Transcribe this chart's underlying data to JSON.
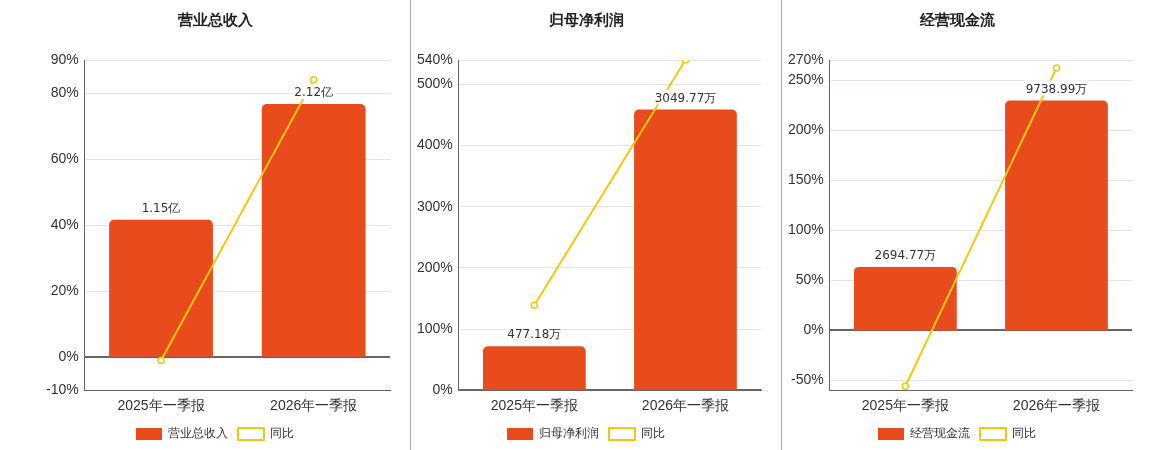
{
  "chart_data": [
    {
      "type": "bar",
      "title": "营业总收入",
      "categories": [
        "2025年一季报",
        "2026年一季报"
      ],
      "series": [
        {
          "name": "营业总收入",
          "color": "#e84c1c",
          "axis": "y2",
          "values": [
            1.15,
            2.12
          ],
          "value_labels": [
            "1.15亿",
            "2.12亿"
          ]
        },
        {
          "name": "同比",
          "type": "line",
          "color": "#f2c80f",
          "values": [
            -1,
            84
          ]
        }
      ],
      "ylim": [
        -10,
        90
      ],
      "yticks": [
        {
          "value": -10,
          "label": "-10%"
        },
        {
          "value": 0,
          "label": "0%"
        },
        {
          "value": 20,
          "label": "20%"
        },
        {
          "value": 40,
          "label": "40%"
        },
        {
          "value": 60,
          "label": "60%"
        },
        {
          "value": 80,
          "label": "80%"
        },
        {
          "value": 90,
          "label": "90%"
        }
      ],
      "y2lim": [
        -0.28,
        2.49
      ],
      "grid": "y",
      "legend": "bottom",
      "marker": "circle"
    },
    {
      "type": "bar",
      "title": "归母净利润",
      "categories": [
        "2025年一季报",
        "2026年一季报"
      ],
      "series": [
        {
          "name": "归母净利润",
          "color": "#e84c1c",
          "axis": "y2",
          "values": [
            477.18,
            3049.77
          ],
          "value_labels": [
            "477.18万",
            "3049.77万"
          ]
        },
        {
          "name": "同比",
          "type": "line",
          "color": "#f2c80f",
          "values": [
            139,
            540
          ]
        }
      ],
      "ylim": [
        0,
        540
      ],
      "yticks": [
        {
          "value": 0,
          "label": "0%"
        },
        {
          "value": 100,
          "label": "100%"
        },
        {
          "value": 200,
          "label": "200%"
        },
        {
          "value": 300,
          "label": "300%"
        },
        {
          "value": 400,
          "label": "400%"
        },
        {
          "value": 500,
          "label": "500%"
        },
        {
          "value": 540,
          "label": "540%"
        }
      ],
      "y2lim": [
        0,
        3588
      ],
      "grid": "y",
      "legend": "bottom",
      "marker": "circle"
    },
    {
      "type": "bar",
      "title": "经营现金流",
      "categories": [
        "2025年一季报",
        "2026年一季报"
      ],
      "series": [
        {
          "name": "经营现金流",
          "color": "#e84c1c",
          "axis": "y2",
          "values": [
            2694.77,
            9738.99
          ],
          "value_labels": [
            "2694.77万",
            "9738.99万"
          ]
        },
        {
          "name": "同比",
          "type": "line",
          "color": "#f2c80f",
          "values": [
            -56,
            262
          ]
        }
      ],
      "ylim": [
        -60,
        270
      ],
      "yticks": [
        {
          "value": -50,
          "label": "-50%"
        },
        {
          "value": 0,
          "label": "0%"
        },
        {
          "value": 50,
          "label": "50%"
        },
        {
          "value": 100,
          "label": "100%"
        },
        {
          "value": 150,
          "label": "150%"
        },
        {
          "value": 200,
          "label": "200%"
        },
        {
          "value": 250,
          "label": "250%"
        },
        {
          "value": 270,
          "label": "270%"
        }
      ],
      "y2lim": [
        -2530,
        11460
      ],
      "grid": "y",
      "legend": "bottom",
      "marker": "circle"
    }
  ]
}
